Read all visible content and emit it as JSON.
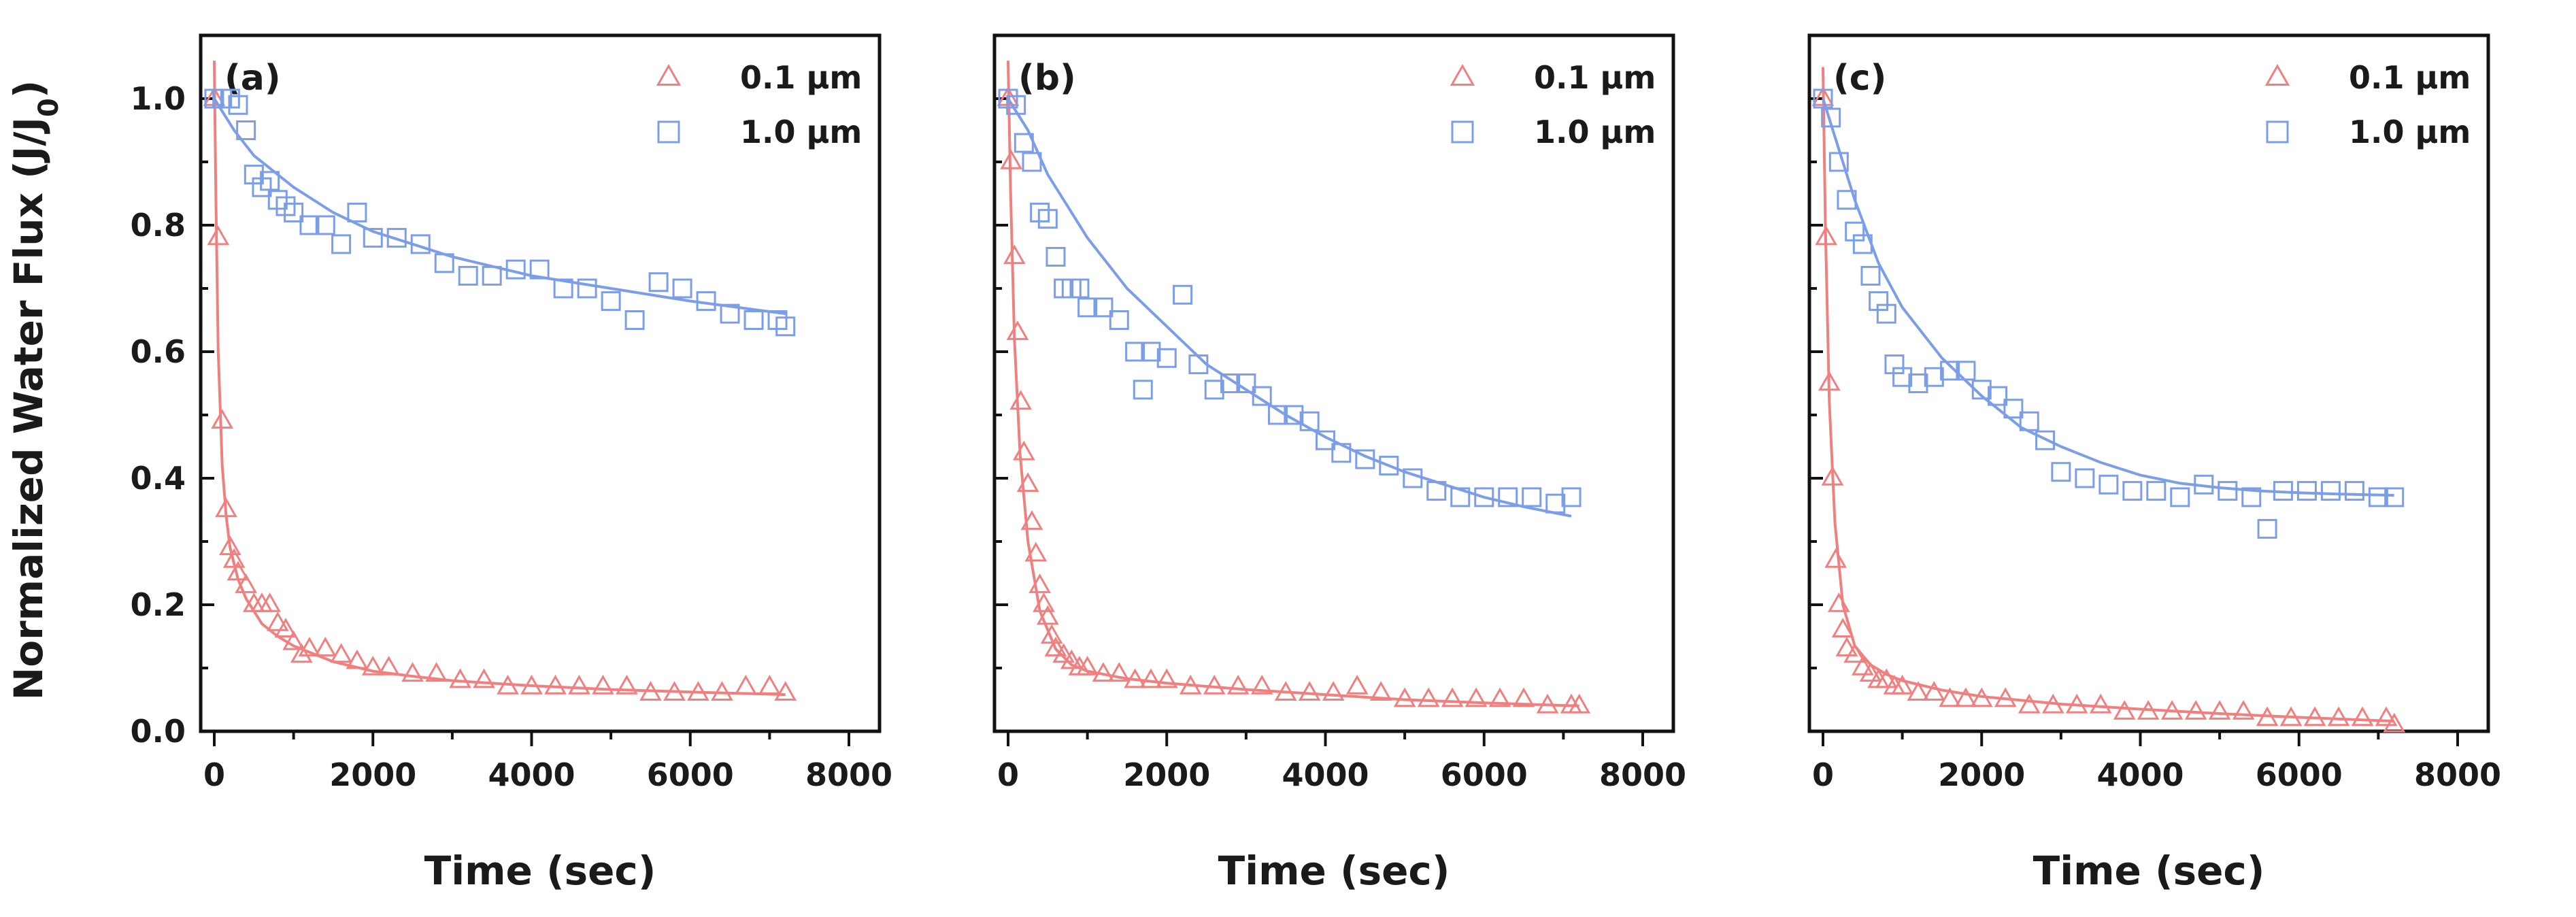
{
  "chart_data": [
    {
      "type": "scatter",
      "panel_label": "(a)",
      "xlabel": "Time (sec)",
      "ylabel": "Normalized Water Flux (J/J",
      "ylabel_sub": "0",
      "ylabel_close": ")",
      "xlim": [
        0,
        8000
      ],
      "ylim": [
        0.0,
        1.1
      ],
      "xticks": [
        0,
        2000,
        4000,
        6000,
        8000
      ],
      "yticks": [
        0.0,
        0.2,
        0.4,
        0.6,
        0.8,
        1.0
      ],
      "xtick_labels": [
        "0",
        "2000",
        "4000",
        "6000",
        "8000"
      ],
      "ytick_labels": [
        "0.0",
        "0.2",
        "0.4",
        "0.6",
        "0.8",
        "1.0"
      ],
      "legend_position": "top-right",
      "series": [
        {
          "name": "0.1 μm",
          "marker": "triangle",
          "color": "#f08080",
          "x": [
            0,
            50,
            100,
            150,
            200,
            250,
            300,
            400,
            500,
            600,
            700,
            800,
            900,
            1000,
            1100,
            1200,
            1400,
            1600,
            1800,
            2000,
            2200,
            2500,
            2800,
            3100,
            3400,
            3700,
            4000,
            4300,
            4600,
            4900,
            5200,
            5500,
            5800,
            6100,
            6400,
            6700,
            7000,
            7200
          ],
          "y": [
            1.0,
            0.78,
            0.49,
            0.35,
            0.29,
            0.27,
            0.25,
            0.23,
            0.2,
            0.2,
            0.2,
            0.17,
            0.16,
            0.14,
            0.12,
            0.13,
            0.13,
            0.12,
            0.11,
            0.1,
            0.1,
            0.09,
            0.09,
            0.08,
            0.08,
            0.07,
            0.07,
            0.07,
            0.07,
            0.07,
            0.07,
            0.06,
            0.06,
            0.06,
            0.06,
            0.07,
            0.07,
            0.06
          ],
          "fit_x": [
            0,
            20,
            50,
            100,
            150,
            200,
            300,
            400,
            600,
            800,
            1000,
            1500,
            2000,
            2500,
            3000,
            4000,
            5000,
            6000,
            7200
          ],
          "fit_y": [
            1.06,
            0.85,
            0.6,
            0.42,
            0.34,
            0.29,
            0.24,
            0.21,
            0.17,
            0.15,
            0.135,
            0.11,
            0.095,
            0.087,
            0.08,
            0.072,
            0.066,
            0.062,
            0.058
          ]
        },
        {
          "name": "1.0 μm",
          "marker": "square",
          "color": "#7c9ee8",
          "x": [
            0,
            100,
            200,
            300,
            400,
            500,
            600,
            700,
            800,
            900,
            1000,
            1200,
            1400,
            1600,
            1800,
            2000,
            2300,
            2600,
            2900,
            3200,
            3500,
            3800,
            4100,
            4400,
            4700,
            5000,
            5300,
            5600,
            5900,
            6200,
            6500,
            6800,
            7100,
            7200
          ],
          "y": [
            1.0,
            1.0,
            1.0,
            0.99,
            0.95,
            0.88,
            0.86,
            0.87,
            0.84,
            0.83,
            0.82,
            0.8,
            0.8,
            0.77,
            0.82,
            0.78,
            0.78,
            0.77,
            0.74,
            0.72,
            0.72,
            0.73,
            0.73,
            0.7,
            0.7,
            0.68,
            0.65,
            0.71,
            0.7,
            0.68,
            0.66,
            0.65,
            0.65,
            0.64
          ],
          "fit_x": [
            0,
            250,
            500,
            1000,
            1500,
            2000,
            3000,
            4000,
            5000,
            6000,
            7200
          ],
          "fit_y": [
            1.0,
            0.95,
            0.91,
            0.86,
            0.82,
            0.79,
            0.75,
            0.72,
            0.7,
            0.68,
            0.66
          ]
        }
      ]
    },
    {
      "type": "scatter",
      "panel_label": "(b)",
      "xlabel": "Time (sec)",
      "xlim": [
        0,
        8000
      ],
      "ylim": [
        0.0,
        1.1
      ],
      "xticks": [
        0,
        2000,
        4000,
        6000,
        8000
      ],
      "yticks": [
        0.0,
        0.2,
        0.4,
        0.6,
        0.8,
        1.0
      ],
      "xtick_labels": [
        "0",
        "2000",
        "4000",
        "6000",
        "8000"
      ],
      "legend_position": "top-right",
      "series": [
        {
          "name": "0.1 μm",
          "marker": "triangle",
          "color": "#f08080",
          "x": [
            0,
            40,
            80,
            120,
            160,
            200,
            250,
            300,
            350,
            400,
            450,
            500,
            550,
            600,
            700,
            800,
            900,
            1000,
            1200,
            1400,
            1600,
            1800,
            2000,
            2300,
            2600,
            2900,
            3200,
            3500,
            3800,
            4100,
            4400,
            4700,
            5000,
            5300,
            5600,
            5900,
            6200,
            6500,
            6800,
            7100,
            7200
          ],
          "y": [
            1.0,
            0.9,
            0.75,
            0.63,
            0.52,
            0.44,
            0.39,
            0.33,
            0.28,
            0.23,
            0.2,
            0.18,
            0.15,
            0.13,
            0.12,
            0.11,
            0.1,
            0.1,
            0.09,
            0.09,
            0.08,
            0.08,
            0.08,
            0.07,
            0.07,
            0.07,
            0.07,
            0.06,
            0.06,
            0.06,
            0.07,
            0.06,
            0.05,
            0.05,
            0.05,
            0.05,
            0.05,
            0.05,
            0.04,
            0.04,
            0.04
          ],
          "fit_x": [
            0,
            30,
            80,
            150,
            250,
            400,
            600,
            800,
            1000,
            1500,
            2000,
            3000,
            4000,
            5000,
            6000,
            7200
          ],
          "fit_y": [
            1.06,
            0.86,
            0.62,
            0.44,
            0.3,
            0.19,
            0.13,
            0.105,
            0.095,
            0.083,
            0.076,
            0.066,
            0.058,
            0.05,
            0.045,
            0.04
          ]
        },
        {
          "name": "1.0 μm",
          "marker": "square",
          "color": "#7c9ee8",
          "x": [
            0,
            100,
            200,
            300,
            400,
            500,
            600,
            700,
            800,
            900,
            1000,
            1200,
            1400,
            1600,
            1700,
            1800,
            2000,
            2200,
            2400,
            2600,
            2800,
            3000,
            3200,
            3400,
            3600,
            3800,
            4000,
            4200,
            4500,
            4800,
            5100,
            5400,
            5700,
            6000,
            6300,
            6600,
            6900,
            7100
          ],
          "y": [
            1.0,
            0.99,
            0.93,
            0.9,
            0.82,
            0.81,
            0.75,
            0.7,
            0.7,
            0.7,
            0.67,
            0.67,
            0.65,
            0.6,
            0.54,
            0.6,
            0.59,
            0.69,
            0.58,
            0.54,
            0.55,
            0.55,
            0.53,
            0.5,
            0.5,
            0.49,
            0.46,
            0.44,
            0.43,
            0.42,
            0.4,
            0.38,
            0.37,
            0.37,
            0.37,
            0.37,
            0.36,
            0.37
          ],
          "fit_x": [
            0,
            250,
            500,
            1000,
            1500,
            2000,
            2500,
            3000,
            3500,
            4000,
            4500,
            5000,
            5500,
            6000,
            6500,
            7100
          ],
          "fit_y": [
            1.0,
            0.95,
            0.88,
            0.78,
            0.7,
            0.64,
            0.58,
            0.54,
            0.5,
            0.465,
            0.435,
            0.41,
            0.39,
            0.37,
            0.355,
            0.34
          ]
        }
      ]
    },
    {
      "type": "scatter",
      "panel_label": "(c)",
      "xlabel": "Time (sec)",
      "xlim": [
        0,
        8000
      ],
      "ylim": [
        0.0,
        1.1
      ],
      "xticks": [
        0,
        2000,
        4000,
        6000,
        8000
      ],
      "yticks": [
        0.0,
        0.2,
        0.4,
        0.6,
        0.8,
        1.0
      ],
      "xtick_labels": [
        "0",
        "2000",
        "4000",
        "6000",
        "8000"
      ],
      "legend_position": "top-right",
      "series": [
        {
          "name": "0.1 μm",
          "marker": "triangle",
          "color": "#f08080",
          "x": [
            0,
            40,
            80,
            120,
            160,
            200,
            250,
            300,
            400,
            500,
            600,
            700,
            800,
            900,
            1000,
            1200,
            1400,
            1600,
            1800,
            2000,
            2300,
            2600,
            2900,
            3200,
            3500,
            3800,
            4100,
            4400,
            4700,
            5000,
            5300,
            5600,
            5900,
            6200,
            6500,
            6800,
            7100,
            7200
          ],
          "y": [
            1.0,
            0.78,
            0.55,
            0.4,
            0.27,
            0.2,
            0.16,
            0.13,
            0.12,
            0.1,
            0.09,
            0.08,
            0.08,
            0.07,
            0.07,
            0.06,
            0.06,
            0.05,
            0.05,
            0.05,
            0.05,
            0.04,
            0.04,
            0.04,
            0.04,
            0.03,
            0.03,
            0.03,
            0.03,
            0.03,
            0.03,
            0.02,
            0.02,
            0.02,
            0.02,
            0.02,
            0.02,
            0.01
          ],
          "fit_x": [
            0,
            30,
            80,
            150,
            250,
            400,
            600,
            800,
            1000,
            1500,
            2000,
            3000,
            4000,
            5000,
            6000,
            7200
          ],
          "fit_y": [
            1.05,
            0.8,
            0.52,
            0.33,
            0.2,
            0.135,
            0.105,
            0.09,
            0.08,
            0.065,
            0.055,
            0.043,
            0.035,
            0.028,
            0.022,
            0.016
          ]
        },
        {
          "name": "1.0 μm",
          "marker": "square",
          "color": "#7c9ee8",
          "x": [
            0,
            100,
            200,
            300,
            400,
            500,
            600,
            700,
            800,
            900,
            1000,
            1200,
            1400,
            1600,
            1800,
            2000,
            2200,
            2400,
            2600,
            2800,
            3000,
            3300,
            3600,
            3900,
            4200,
            4500,
            4800,
            5100,
            5400,
            5600,
            5800,
            6100,
            6400,
            6700,
            7000,
            7200
          ],
          "y": [
            1.0,
            0.97,
            0.9,
            0.84,
            0.79,
            0.77,
            0.72,
            0.68,
            0.66,
            0.58,
            0.56,
            0.55,
            0.56,
            0.57,
            0.57,
            0.54,
            0.53,
            0.51,
            0.49,
            0.46,
            0.41,
            0.4,
            0.39,
            0.38,
            0.38,
            0.37,
            0.39,
            0.38,
            0.37,
            0.32,
            0.38,
            0.38,
            0.38,
            0.38,
            0.37,
            0.37
          ],
          "fit_x": [
            0,
            200,
            400,
            700,
            1000,
            1500,
            2000,
            2500,
            3000,
            3500,
            4000,
            4500,
            5000,
            5500,
            6000,
            6500,
            7200
          ],
          "fit_y": [
            1.0,
            0.92,
            0.84,
            0.74,
            0.67,
            0.59,
            0.53,
            0.48,
            0.45,
            0.425,
            0.405,
            0.392,
            0.385,
            0.38,
            0.377,
            0.375,
            0.373
          ]
        }
      ]
    }
  ]
}
